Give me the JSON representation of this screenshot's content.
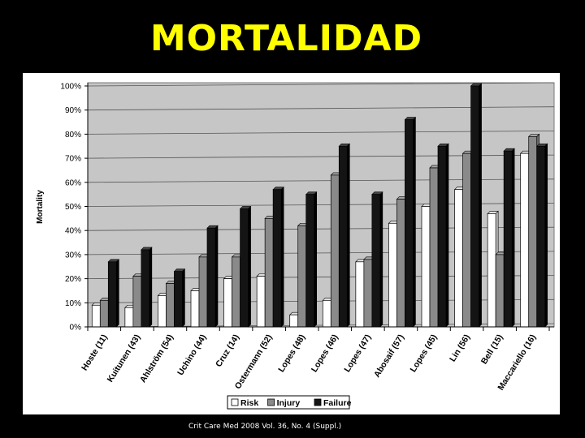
{
  "slide": {
    "title": "MORTALIDAD",
    "citation": "Crit Care Med 2008 Vol. 36, No. 4 (Suppl.)"
  },
  "colors": {
    "title": "#ffff00",
    "risk": "#ffffff",
    "injury": "#8a8a8a",
    "failure": "#141414",
    "plot_background": "#c6c6c6"
  },
  "chart_data": {
    "type": "bar",
    "title": "",
    "xlabel": "",
    "ylabel": "Mortality",
    "ylim": [
      0,
      100
    ],
    "y_ticks": [
      "0%",
      "10%",
      "20%",
      "30%",
      "40%",
      "50%",
      "60%",
      "70%",
      "80%",
      "90%",
      "100%"
    ],
    "categories": [
      "Hoste (11)",
      "Kuitunen (43)",
      "Ahlström (54)",
      "Uchino (44)",
      "Cruz (14)",
      "Ostermann (52)",
      "Lopes (48)",
      "Lopes (46)",
      "Lopes (47)",
      "Abosaif (57)",
      "Lopes (45)",
      "Lin (56)",
      "Bell (15)",
      "Maccariello (16)"
    ],
    "series": [
      {
        "name": "Risk",
        "values": [
          9,
          8,
          13,
          15,
          20,
          21,
          5,
          11,
          27,
          43,
          50,
          57,
          47,
          72
        ]
      },
      {
        "name": "Injury",
        "values": [
          11,
          21,
          18,
          29,
          29,
          45,
          42,
          63,
          28,
          53,
          66,
          72,
          30,
          79
        ]
      },
      {
        "name": "Failure",
        "values": [
          27,
          32,
          23,
          41,
          49,
          57,
          55,
          75,
          55,
          86,
          75,
          100,
          73,
          75
        ]
      }
    ],
    "grid": true,
    "legend": "bottom"
  }
}
